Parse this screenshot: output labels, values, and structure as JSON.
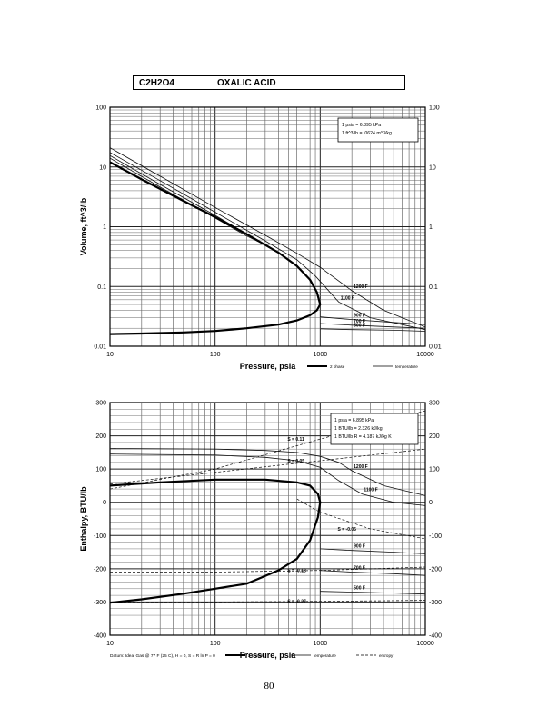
{
  "header": {
    "formula": "C2H2O4",
    "name": "OXALIC ACID"
  },
  "page_number": "80",
  "chart_data": [
    {
      "type": "line",
      "xlabel": "Pressure,  psia",
      "ylabel": "Volume, ft^3/lb",
      "x_scale": "log",
      "y_scale": "log",
      "xlim": [
        10,
        10000
      ],
      "ylim": [
        0.01,
        100
      ],
      "x_ticks": [
        "10",
        "100",
        "1000",
        "10000"
      ],
      "y_ticks": [
        "100",
        "10",
        "1",
        "0.1",
        "0.01"
      ],
      "grid": true,
      "conversion_box": [
        "1 psia  =  6.895 kPa",
        "1 ft^3/lb  =  .0624 m^3/kg"
      ],
      "legend": [
        {
          "label": "2 phase",
          "style": "thick"
        },
        {
          "label": "temperature",
          "style": "thin"
        }
      ],
      "saturation_dome": {
        "x": [
          10,
          20,
          50,
          100,
          200,
          400,
          600,
          800,
          930,
          1000,
          930,
          800,
          600,
          400,
          200,
          100,
          50,
          20,
          10
        ],
        "y": [
          12,
          6.2,
          2.7,
          1.45,
          0.75,
          0.37,
          0.22,
          0.13,
          0.08,
          0.05,
          0.04,
          0.033,
          0.027,
          0.023,
          0.02,
          0.018,
          0.017,
          0.0163,
          0.016
        ]
      },
      "series": [
        {
          "name": "1200 F",
          "x": [
            10,
            30,
            100,
            300,
            600,
            1000,
            2000,
            4000,
            10000
          ],
          "y": [
            21,
            7,
            2.1,
            0.72,
            0.36,
            0.21,
            0.085,
            0.04,
            0.021
          ]
        },
        {
          "name": "1100 F",
          "x": [
            10,
            30,
            100,
            300,
            600,
            900,
            1500,
            3000,
            10000
          ],
          "y": [
            17.5,
            5.9,
            1.75,
            0.58,
            0.28,
            0.15,
            0.055,
            0.03,
            0.019
          ]
        },
        {
          "name": "900 F",
          "x": [
            1000,
            2000,
            5000,
            10000
          ],
          "y": [
            0.031,
            0.028,
            0.025,
            0.023
          ]
        },
        {
          "name": "700 F",
          "x": [
            1000,
            2000,
            5000,
            10000
          ],
          "y": [
            0.024,
            0.0225,
            0.021,
            0.02
          ]
        },
        {
          "name": "500 F",
          "x": [
            1000,
            2000,
            5000,
            10000
          ],
          "y": [
            0.0195,
            0.019,
            0.0185,
            0.0178
          ]
        },
        {
          "name": "",
          "x": [
            10,
            30,
            100,
            300,
            450
          ],
          "y": [
            15.5,
            5.1,
            1.55,
            0.5,
            0.33
          ]
        },
        {
          "name": "",
          "x": [
            10,
            30,
            100,
            200,
            260
          ],
          "y": [
            14,
            4.6,
            1.4,
            0.7,
            0.56
          ]
        }
      ],
      "annotations": [
        "1200 F",
        "1100 F",
        "900 F",
        "700 F",
        "500 F"
      ]
    },
    {
      "type": "line",
      "xlabel": "Pressure,  psia",
      "ylabel": "Enthalpy, BTU/lb",
      "x_scale": "log",
      "xlim": [
        10,
        10000
      ],
      "ylim": [
        -400,
        300
      ],
      "x_ticks": [
        "10",
        "100",
        "1000",
        "10000"
      ],
      "y_ticks": [
        "300",
        "200",
        "100",
        "0",
        "-100",
        "-200",
        "-300",
        "-400"
      ],
      "grid": true,
      "conversion_box": [
        "1 psia  =  6.895 kPa",
        "1 BTU/lb  =  2.326 kJ/kg",
        "1 BTU/lb R  =  4.187 kJ/kg K"
      ],
      "footnote": "Datum: Ideal Gas @ 77 F (25 C), H = 0, S = R ln P = 0",
      "legend": [
        {
          "label": "2 phase",
          "style": "thick"
        },
        {
          "label": "temperature",
          "style": "thin"
        },
        {
          "label": "entropy",
          "style": "dashed"
        }
      ],
      "saturation_dome": {
        "x": [
          10,
          30,
          100,
          300,
          600,
          800,
          950,
          1000,
          950,
          800,
          600,
          400,
          200,
          100,
          50,
          20,
          10
        ],
        "y": [
          50,
          60,
          68,
          68,
          60,
          50,
          25,
          0,
          -45,
          -115,
          -170,
          -205,
          -245,
          -260,
          -275,
          -292,
          -302
        ]
      },
      "series": [
        {
          "name": "1200 F",
          "x": [
            10,
            100,
            300,
            600,
            1000,
            1500,
            2000,
            4000,
            10000
          ],
          "y": [
            162,
            160,
            156,
            150,
            138,
            120,
            95,
            50,
            20
          ]
        },
        {
          "name": "1100 F",
          "x": [
            10,
            100,
            300,
            600,
            1000,
            1500,
            2500,
            5000,
            10000
          ],
          "y": [
            145,
            142,
            135,
            125,
            105,
            65,
            25,
            0,
            -10
          ]
        },
        {
          "name": "900 F",
          "x": [
            1000,
            2000,
            5000,
            10000
          ],
          "y": [
            -140,
            -145,
            -150,
            -155
          ]
        },
        {
          "name": "700 F",
          "x": [
            1000,
            2000,
            5000,
            10000
          ],
          "y": [
            -205,
            -210,
            -215,
            -220
          ]
        },
        {
          "name": "500 F",
          "x": [
            1000,
            2000,
            5000,
            10000
          ],
          "y": [
            -268,
            -270,
            -273,
            -276
          ]
        }
      ],
      "entropy_series": [
        {
          "name": "S = 0.11",
          "x": [
            10,
            100,
            1000,
            10000
          ],
          "y": [
            40,
            100,
            190,
            275
          ]
        },
        {
          "name": "S = 0.05",
          "x": [
            10,
            100,
            1000,
            10000
          ],
          "y": [
            55,
            90,
            125,
            160
          ]
        },
        {
          "name": "S = -0.05",
          "x": [
            600,
            1000,
            3000,
            10000
          ],
          "y": [
            10,
            -30,
            -80,
            -110
          ]
        },
        {
          "name": "S = -0.18",
          "x": [
            10,
            100,
            1000,
            10000
          ],
          "y": [
            -210,
            -210,
            -205,
            -195
          ]
        },
        {
          "name": "S = -0.27",
          "x": [
            10,
            100,
            1000,
            10000
          ],
          "y": [
            -300,
            -300,
            -298,
            -295
          ]
        }
      ],
      "annotations": [
        "S = 0.11",
        "S = 0.05",
        "1200 F",
        "1100 F",
        "S = -0.05",
        "900 F",
        "S = -0.18",
        "700 F",
        "S = -0.27",
        "500 F"
      ]
    }
  ]
}
